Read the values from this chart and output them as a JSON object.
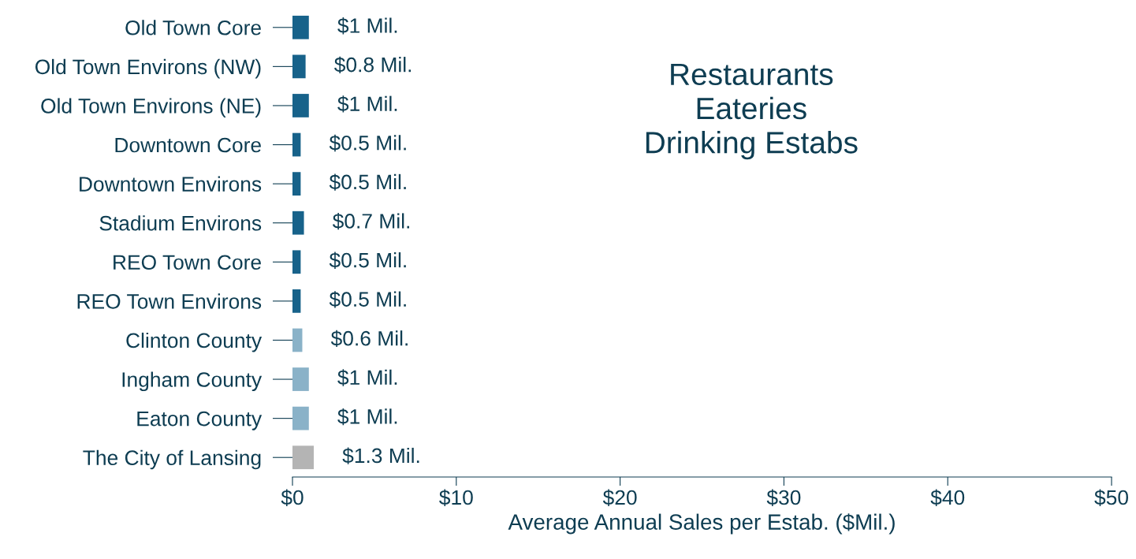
{
  "chart_data": {
    "type": "bar",
    "orientation": "horizontal",
    "title": "Restaurants\nEateries\nDrinking Estabs",
    "xlabel": "Average Annual Sales per Estab. ($Mil.)",
    "categories": [
      "Old Town Core",
      "Old Town Environs (NW)",
      "Old Town Environs (NE)",
      "Downtown Core",
      "Downtown Environs",
      "Stadium Environs",
      "REO Town Core",
      "REO Town Environs",
      "Clinton County",
      "Ingham County",
      "Eaton County",
      "The City of Lansing"
    ],
    "values": [
      1,
      0.8,
      1,
      0.5,
      0.5,
      0.7,
      0.5,
      0.5,
      0.6,
      1,
      1,
      1.3
    ],
    "value_labels": [
      "$1 Mil.",
      "$0.8 Mil.",
      "$1 Mil.",
      "$0.5 Mil.",
      "$0.5 Mil.",
      "$0.7 Mil.",
      "$0.5 Mil.",
      "$0.5 Mil.",
      "$0.6 Mil.",
      "$1 Mil.",
      "$1 Mil.",
      "$1.3 Mil."
    ],
    "colors": [
      "#17628a",
      "#17628a",
      "#17628a",
      "#17628a",
      "#17628a",
      "#17628a",
      "#17628a",
      "#17628a",
      "#8ab2c8",
      "#8ab2c8",
      "#8ab2c8",
      "#b4b4b4"
    ],
    "xlim": [
      0,
      50
    ],
    "xticks": [
      {
        "value": 0,
        "label": "$0"
      },
      {
        "value": 10,
        "label": "$10"
      },
      {
        "value": 20,
        "label": "$20"
      },
      {
        "value": 30,
        "label": "$30"
      },
      {
        "value": 40,
        "label": "$40"
      },
      {
        "value": 50,
        "label": "$50"
      }
    ],
    "grid": false,
    "legend": false
  }
}
